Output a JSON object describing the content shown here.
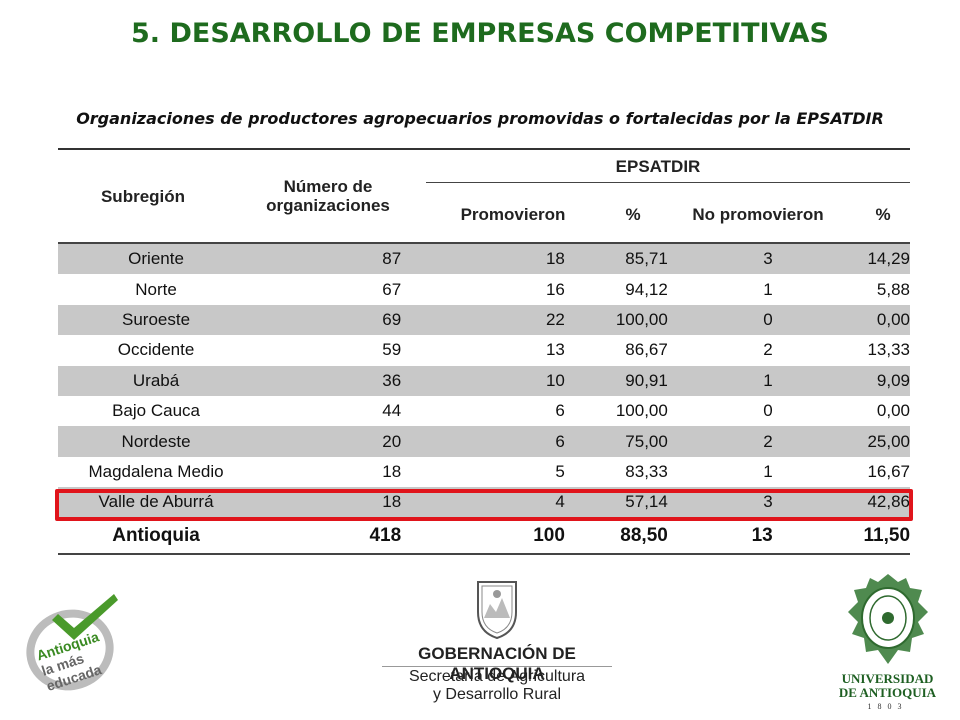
{
  "title": "5. DESARROLLO DE EMPRESAS COMPETITIVAS",
  "subtitle": "Organizaciones de productores agropecuarios promovidas o fortalecidas por la EPSATDIR",
  "table": {
    "headers": {
      "subregion": "Subregión",
      "num_org_line1": "Número de",
      "num_org_line2": "organizaciones",
      "group": "EPSATDIR",
      "promovieron": "Promovieron",
      "pct1": "%",
      "no_promovieron": "No promovieron",
      "pct2": "%"
    },
    "rows": [
      {
        "subregion": "Oriente",
        "num": "87",
        "prom": "18",
        "pct": "85,71",
        "noprom": "3",
        "pct2": "14,29"
      },
      {
        "subregion": "Norte",
        "num": "67",
        "prom": "16",
        "pct": "94,12",
        "noprom": "1",
        "pct2": "5,88"
      },
      {
        "subregion": "Suroeste",
        "num": "69",
        "prom": "22",
        "pct": "100,00",
        "noprom": "0",
        "pct2": "0,00"
      },
      {
        "subregion": "Occidente",
        "num": "59",
        "prom": "13",
        "pct": "86,67",
        "noprom": "2",
        "pct2": "13,33"
      },
      {
        "subregion": "Urabá",
        "num": "36",
        "prom": "10",
        "pct": "90,91",
        "noprom": "1",
        "pct2": "9,09"
      },
      {
        "subregion": "Bajo Cauca",
        "num": "44",
        "prom": "6",
        "pct": "100,00",
        "noprom": "0",
        "pct2": "0,00"
      },
      {
        "subregion": "Nordeste",
        "num": "20",
        "prom": "6",
        "pct": "75,00",
        "noprom": "2",
        "pct2": "25,00"
      },
      {
        "subregion": "Magdalena Medio",
        "num": "18",
        "prom": "5",
        "pct": "83,33",
        "noprom": "1",
        "pct2": "16,67"
      },
      {
        "subregion": "Valle de Aburrá",
        "num": "18",
        "prom": "4",
        "pct": "57,14",
        "noprom": "3",
        "pct2": "42,86"
      }
    ],
    "total": {
      "subregion": "Antioquia",
      "num": "418",
      "prom": "100",
      "pct": "88,50",
      "noprom": "13",
      "pct2": "11,50"
    },
    "highlight_color": "#e0141b",
    "alt_row_color": "#c8c8c8"
  },
  "logos": {
    "left_text": [
      "Antioquia",
      "la más",
      "educada"
    ],
    "gov_title": "GOBERNACIÓN DE ANTIOQUIA",
    "gov_sub1": "Secretaría de Agricultura",
    "gov_sub2": "y Desarrollo Rural",
    "udea_line1": "UNIVERSIDAD",
    "udea_line2": "DE ANTIOQUIA",
    "udea_year": "1803"
  },
  "colors": {
    "title": "#1e6b1e",
    "highlight": "#e0141b"
  }
}
